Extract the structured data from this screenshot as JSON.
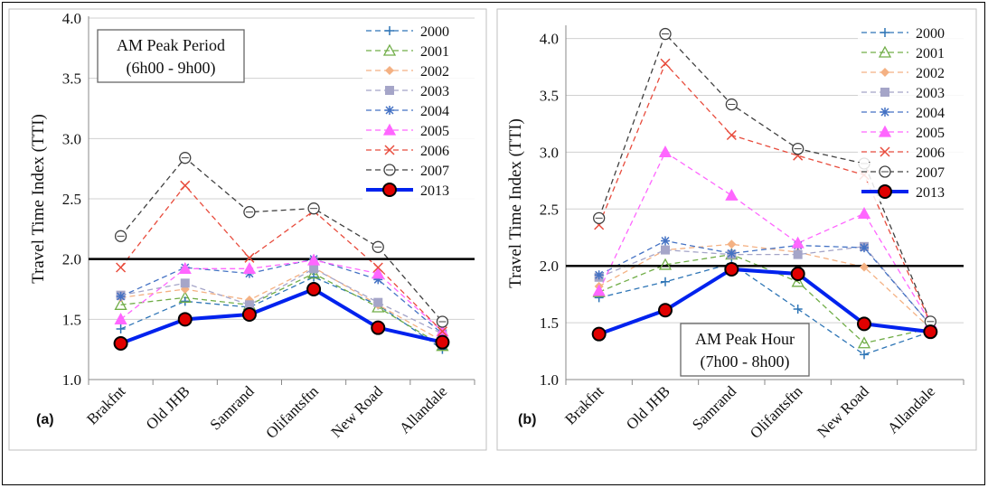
{
  "chart_data": [
    {
      "type": "line",
      "panel_label": "(a)",
      "annotation": [
        "AM Peak Period",
        "(6h00 - 9h00)"
      ],
      "annotation_position": "top-left",
      "ylabel": "Travel Time Index (TTI)",
      "xlabel": "",
      "ylim": [
        1.0,
        4.0
      ],
      "yticks": [
        "1.0",
        "1.5",
        "2.0",
        "2.5",
        "3.0",
        "3.5",
        "4.0"
      ],
      "grid": true,
      "legend_position": "top-right",
      "reference_line": 2.0,
      "categories": [
        "Brakfnt",
        "Old JHB",
        "Samrand",
        "Olifantsftn",
        "New Road",
        "Allandale"
      ],
      "series": [
        {
          "name": "2000",
          "color": "#2e75b6",
          "marker": "plus",
          "values": [
            1.42,
            1.65,
            1.6,
            1.85,
            1.62,
            1.25
          ]
        },
        {
          "name": "2001",
          "color": "#70ad47",
          "marker": "triangle",
          "values": [
            1.62,
            1.68,
            1.62,
            1.88,
            1.6,
            1.28
          ]
        },
        {
          "name": "2002",
          "color": "#f4b183",
          "marker": "diamond",
          "values": [
            1.68,
            1.75,
            1.66,
            1.93,
            1.62,
            1.32
          ]
        },
        {
          "name": "2003",
          "color": "#a5a5c8",
          "marker": "square",
          "values": [
            1.7,
            1.8,
            1.62,
            1.92,
            1.64,
            1.38
          ]
        },
        {
          "name": "2004",
          "color": "#4472c4",
          "marker": "star",
          "values": [
            1.69,
            1.93,
            1.88,
            2.0,
            1.83,
            1.38
          ]
        },
        {
          "name": "2005",
          "color": "#ff66ff",
          "marker": "triangle",
          "values": [
            1.5,
            1.92,
            1.92,
            1.99,
            1.88,
            1.4
          ]
        },
        {
          "name": "2006",
          "color": "#e84c3d",
          "marker": "x",
          "values": [
            1.93,
            2.61,
            2.01,
            2.4,
            1.93,
            1.4
          ]
        },
        {
          "name": "2007",
          "color": "#404040",
          "marker": "circle-open",
          "values": [
            2.19,
            2.84,
            2.39,
            2.42,
            2.1,
            1.48
          ]
        },
        {
          "name": "2013",
          "color": "#0022ee",
          "marker": "circle-red",
          "values": [
            1.3,
            1.5,
            1.54,
            1.75,
            1.43,
            1.31
          ]
        }
      ]
    },
    {
      "type": "line",
      "panel_label": "(b)",
      "annotation": [
        "AM Peak Hour",
        "(7h00 - 8h00)"
      ],
      "annotation_position": "bottom-right",
      "ylabel": "Travel Time Index (TTI)",
      "xlabel": "",
      "ylim": [
        1.0,
        4.1
      ],
      "yticks": [
        "1.0",
        "1.5",
        "2.0",
        "2.5",
        "3.0",
        "3.5",
        "4.0"
      ],
      "grid": true,
      "legend_position": "top-right",
      "reference_line": 2.0,
      "categories": [
        "Brakfnt",
        "Old JHB",
        "Samrand",
        "Olifantsftn",
        "New Road",
        "Allandale"
      ],
      "series": [
        {
          "name": "2000",
          "color": "#2e75b6",
          "marker": "plus",
          "values": [
            1.72,
            1.86,
            2.02,
            1.62,
            1.22,
            1.42
          ]
        },
        {
          "name": "2001",
          "color": "#70ad47",
          "marker": "triangle",
          "values": [
            1.77,
            2.01,
            2.1,
            1.86,
            1.32,
            1.45
          ]
        },
        {
          "name": "2002",
          "color": "#f4b183",
          "marker": "diamond",
          "values": [
            1.82,
            2.14,
            2.19,
            2.12,
            1.99,
            1.45
          ]
        },
        {
          "name": "2003",
          "color": "#a5a5c8",
          "marker": "square",
          "values": [
            1.9,
            2.14,
            2.1,
            2.1,
            2.17,
            1.48
          ]
        },
        {
          "name": "2004",
          "color": "#4472c4",
          "marker": "star",
          "values": [
            1.92,
            2.22,
            2.11,
            2.18,
            2.16,
            1.48
          ]
        },
        {
          "name": "2005",
          "color": "#ff66ff",
          "marker": "triangle",
          "values": [
            1.78,
            3.0,
            2.62,
            2.2,
            2.46,
            1.5
          ]
        },
        {
          "name": "2006",
          "color": "#e84c3d",
          "marker": "x",
          "values": [
            2.36,
            3.78,
            3.15,
            2.97,
            2.8,
            1.5
          ]
        },
        {
          "name": "2007",
          "color": "#404040",
          "marker": "circle-open",
          "values": [
            2.42,
            4.04,
            3.42,
            3.03,
            2.9,
            1.51
          ]
        },
        {
          "name": "2013",
          "color": "#0022ee",
          "marker": "circle-red",
          "values": [
            1.4,
            1.61,
            1.97,
            1.93,
            1.49,
            1.42
          ]
        }
      ]
    }
  ]
}
